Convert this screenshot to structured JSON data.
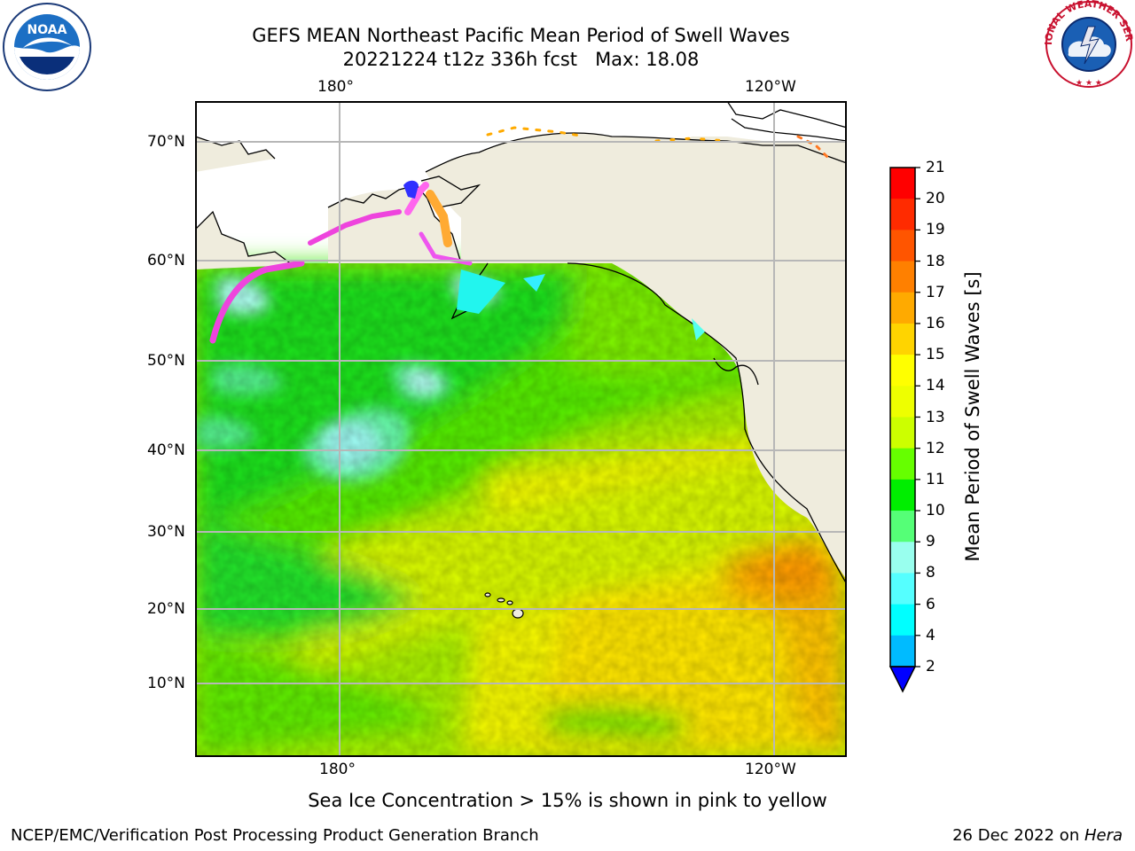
{
  "title": {
    "line1": "GEFS MEAN Northeast Pacific Mean Period of Swell Waves",
    "line2": "20221224 t12z 336h fcst   Max: 18.08"
  },
  "logos": {
    "left": {
      "icon": "noaa-logo-icon",
      "text": "NOAA"
    },
    "right": {
      "icon": "nws-logo-icon",
      "text": "NATIONAL WEATHER SERVICE"
    }
  },
  "map": {
    "lon_top": [
      "180°",
      "120°W"
    ],
    "lon_bottom": [
      "180°",
      "120°W"
    ],
    "lat": [
      "70°N",
      "60°N",
      "50°N",
      "40°N",
      "30°N",
      "20°N",
      "10°N"
    ],
    "land_color": "#efecdd",
    "grid_color": "#b7b7b7"
  },
  "colorbar": {
    "label": "Mean Period of Swell Waves [s]",
    "ticks": [
      "21",
      "20",
      "19",
      "18",
      "17",
      "16",
      "15",
      "14",
      "13",
      "12",
      "11",
      "10",
      "9",
      "8",
      "6",
      "4",
      "2"
    ],
    "colors": [
      "#ff0000",
      "#ff2b00",
      "#ff5500",
      "#ff8000",
      "#ffaa00",
      "#ffd400",
      "#ffff00",
      "#eeff00",
      "#ccff00",
      "#66ff00",
      "#00ee00",
      "#55ff77",
      "#99ffee",
      "#55ffff",
      "#00ffff",
      "#00bbff",
      "#0066ff"
    ],
    "extend_color": "#0000ff"
  },
  "note": "Sea Ice Concentration > 15% is shown in pink to yellow",
  "footer": {
    "left": "NCEP/EMC/Verification Post Processing Product Generation Branch",
    "right_prefix": "26 Dec 2022 on ",
    "right_machine": "Hera"
  }
}
